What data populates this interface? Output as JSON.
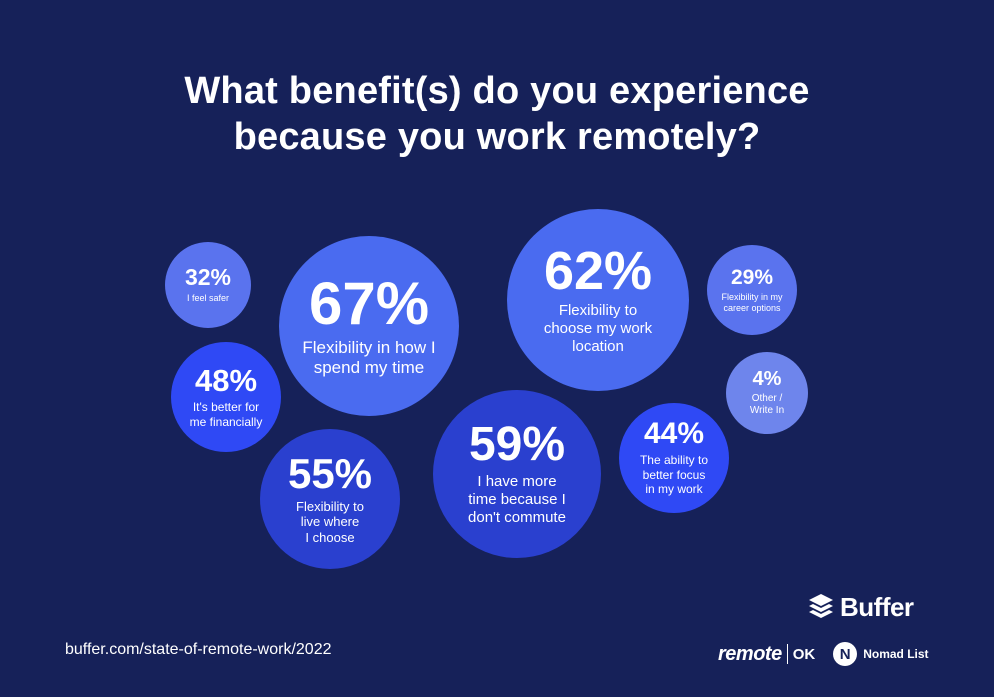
{
  "title": {
    "line1": "What benefit(s) do you experience",
    "line2": "because you work remotely?"
  },
  "chart_data": {
    "type": "bubble",
    "unit": "%",
    "points": [
      {
        "value": 67,
        "pct": "67%",
        "label": "Flexibility in how I\nspend my time",
        "color": "#4a6bf0"
      },
      {
        "value": 62,
        "pct": "62%",
        "label": "Flexibility to\nchoose my work\nlocation",
        "color": "#4a6bf0"
      },
      {
        "value": 59,
        "pct": "59%",
        "label": "I have more\ntime because I\ndon't commute",
        "color": "#2a40cf"
      },
      {
        "value": 55,
        "pct": "55%",
        "label": "Flexibility to\nlive where\nI choose",
        "color": "#2a40cf"
      },
      {
        "value": 48,
        "pct": "48%",
        "label": "It's better for\nme financially",
        "color": "#2f49f5"
      },
      {
        "value": 44,
        "pct": "44%",
        "label": "The ability to\nbetter focus\nin my work",
        "color": "#2f49f5"
      },
      {
        "value": 32,
        "pct": "32%",
        "label": "I feel safer",
        "color": "#5a73ee"
      },
      {
        "value": 29,
        "pct": "29%",
        "label": "Flexibility in my\ncareer options",
        "color": "#5a73ee"
      },
      {
        "value": 4,
        "pct": "4%",
        "label": "Other /\nWrite In",
        "color": "#6e85ec"
      }
    ]
  },
  "footer": {
    "url": "buffer.com/state-of-remote-work/2022",
    "buffer_name": "Buffer",
    "remote_word": "remote",
    "ok_word": "OK",
    "nomad_letter": "N",
    "nomad_name": "Nomad List"
  },
  "icons": {
    "buffer": "buffer-stack-icon"
  }
}
